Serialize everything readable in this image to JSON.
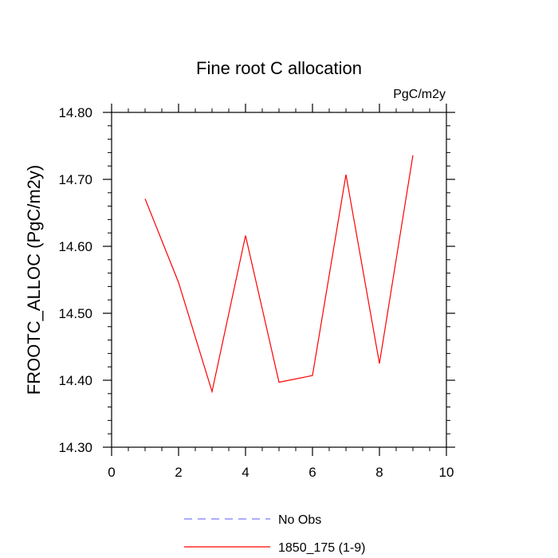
{
  "chart_data": {
    "type": "line",
    "title": "Fine root C allocation",
    "units_label": "PgC/m2y",
    "xlabel": "",
    "ylabel": "FROOTC_ALLOC  (PgC/m2y)",
    "xlim": [
      0,
      10
    ],
    "ylim": [
      14.3,
      14.8
    ],
    "x_ticks": [
      0,
      2,
      4,
      6,
      8,
      10
    ],
    "x_tick_labels": [
      "0",
      "2",
      "4",
      "6",
      "8",
      "10"
    ],
    "y_ticks": [
      14.3,
      14.4,
      14.5,
      14.6,
      14.7,
      14.8
    ],
    "y_tick_labels": [
      "14.30",
      "14.40",
      "14.50",
      "14.60",
      "14.70",
      "14.80"
    ],
    "grid": false,
    "legend_position": "bottom-center",
    "series": [
      {
        "name": "1850_175 (1-9)",
        "color": "#ff0000",
        "style": "solid",
        "x": [
          1,
          2,
          3,
          4,
          5,
          6,
          7,
          8,
          9
        ],
        "values": [
          14.671,
          14.546,
          14.383,
          14.616,
          14.397,
          14.407,
          14.707,
          14.425,
          14.736
        ]
      },
      {
        "name": "No Obs",
        "color": "#7b7bff",
        "style": "dashed",
        "x": [],
        "values": []
      }
    ]
  }
}
